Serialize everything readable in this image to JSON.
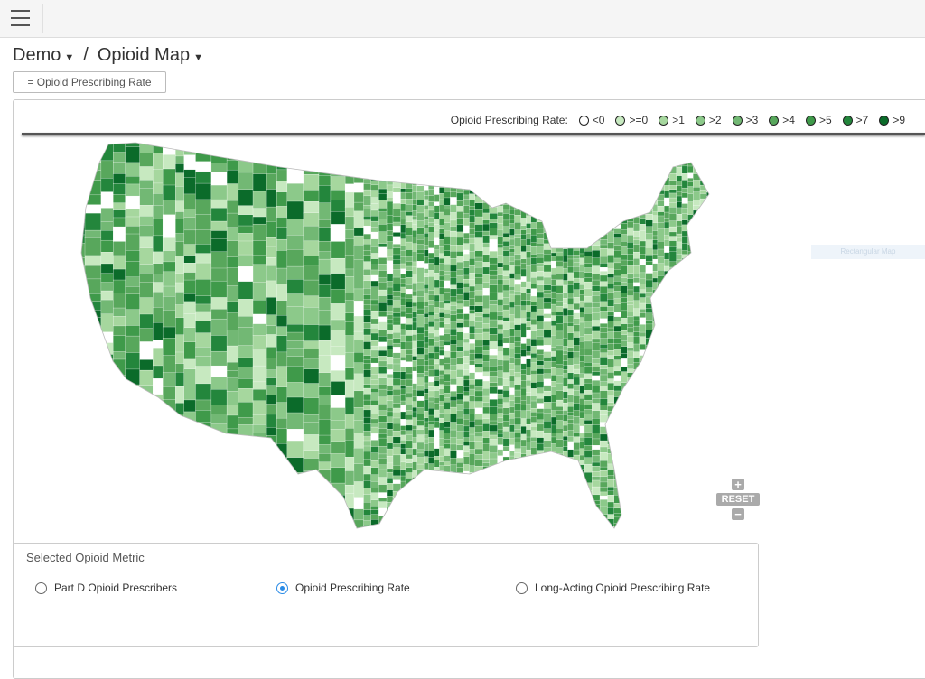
{
  "breadcrumb": {
    "items": [
      "Demo",
      "Opioid Map"
    ],
    "separator": "/"
  },
  "filter_chip": "= Opioid Prescribing Rate",
  "legend": {
    "title": "Opioid Prescribing Rate:",
    "items": [
      {
        "label": "<0",
        "color": "#ffffff"
      },
      {
        "label": ">=0",
        "color": "#c7e9c0"
      },
      {
        "label": ">1",
        "color": "#a6d79e"
      },
      {
        "label": ">2",
        "color": "#8cc98a"
      },
      {
        "label": ">3",
        "color": "#72b874"
      },
      {
        "label": ">4",
        "color": "#58a75c"
      },
      {
        "label": ">5",
        "color": "#3f9a4a"
      },
      {
        "label": ">7",
        "color": "#23863c"
      },
      {
        "label": ">9",
        "color": "#0b6b2a"
      }
    ]
  },
  "map_hint": "Rectangular Map",
  "zoom": {
    "reset": "RESET"
  },
  "metric_panel": {
    "title": "Selected Opioid Metric",
    "options": [
      {
        "label": "Part D Opioid Prescribers",
        "checked": false
      },
      {
        "label": "Opioid Prescribing Rate",
        "checked": true
      },
      {
        "label": "Long-Acting Opioid Prescribing Rate",
        "checked": false
      }
    ]
  }
}
